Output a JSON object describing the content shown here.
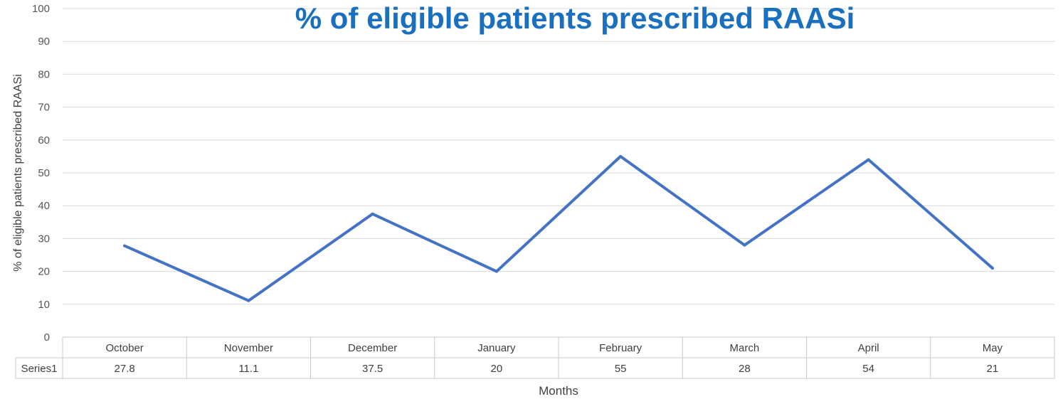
{
  "chart_data": {
    "type": "line",
    "title": "% of eligible patients prescribed RAASi",
    "xlabel": "Months",
    "ylabel": "% of eligible patients prescribed RAASi",
    "categories": [
      "October",
      "November",
      "December",
      "January",
      "February",
      "March",
      "April",
      "May"
    ],
    "series": [
      {
        "name": "Series1",
        "values": [
          27.8,
          11.1,
          37.5,
          20,
          55,
          28,
          54,
          21
        ]
      }
    ],
    "value_labels": [
      "27.8",
      "11.1",
      "37.5",
      "20",
      "55",
      "28",
      "54",
      "21"
    ],
    "ylim": [
      0,
      100
    ],
    "yticks": [
      0,
      10,
      20,
      30,
      40,
      50,
      60,
      70,
      80,
      90,
      100
    ],
    "grid": true,
    "data_table": true,
    "line_color": "#4472c4",
    "title_color": "#1a6fbf"
  }
}
